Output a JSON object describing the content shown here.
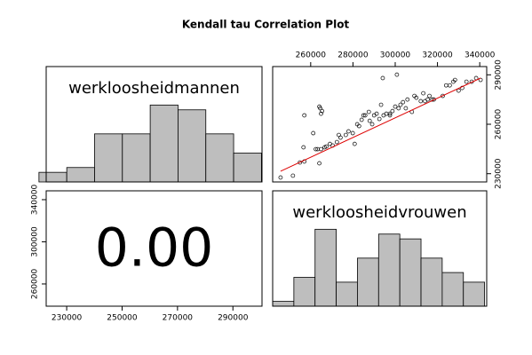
{
  "title": "Kendall tau Correlation Plot",
  "chart_data": [
    {
      "type": "histogram",
      "label": "werkloosheidmannen",
      "color": "#bebebe",
      "bins": [
        220000,
        230000,
        240000,
        250000,
        260000,
        270000,
        280000,
        290000,
        300000
      ],
      "counts": [
        2,
        3,
        10,
        10,
        16,
        15,
        10,
        6
      ],
      "xlim": [
        222600,
        300200
      ],
      "ylim": [
        0,
        24
      ]
    },
    {
      "type": "scatter",
      "line_color": "#dd0000",
      "x": [
        245750,
        251600,
        254900,
        257000,
        256600,
        257000,
        261200,
        262400,
        263300,
        264100,
        264100,
        264500,
        264900,
        265400,
        264900,
        266600,
        267400,
        269100,
        270400,
        272400,
        273300,
        274100,
        276600,
        277900,
        279900,
        280800,
        282000,
        282900,
        284100,
        285000,
        285800,
        287500,
        287900,
        289100,
        290000,
        291200,
        292500,
        293300,
        294100,
        294500,
        295800,
        297500,
        297500,
        298700,
        300000,
        300800,
        301600,
        302500,
        303700,
        305000,
        305800,
        307900,
        309100,
        310000,
        312100,
        313300,
        314100,
        315400,
        316200,
        317500,
        318300,
        322500,
        324100,
        325800,
        327500,
        328300,
        330000,
        331700,
        333700,
        336200,
        338300,
        340400
      ],
      "y": [
        227700,
        228800,
        236800,
        237400,
        246000,
        265400,
        254600,
        244900,
        244900,
        236300,
        270700,
        269700,
        266400,
        268000,
        244900,
        246000,
        246500,
        248100,
        247100,
        249200,
        253500,
        251900,
        253500,
        255700,
        254600,
        248100,
        260000,
        258900,
        262700,
        265400,
        265400,
        267500,
        262100,
        260000,
        265400,
        266400,
        263200,
        271800,
        288000,
        265400,
        266400,
        265400,
        266400,
        268000,
        270700,
        290100,
        269700,
        271800,
        273400,
        269700,
        275000,
        267500,
        277200,
        276100,
        274000,
        278800,
        274000,
        275000,
        277200,
        275000,
        275000,
        277200,
        283600,
        283600,
        285800,
        286900,
        280400,
        282000,
        285800,
        285800,
        288000,
        286900
      ],
      "fit_line": {
        "x": [
          245750,
          340400
        ],
        "y": [
          231500,
          288000
        ]
      },
      "xlim": [
        242000,
        343300
      ],
      "ylim": [
        225000,
        295000
      ],
      "xticks": [
        260000,
        280000,
        300000,
        320000,
        340000
      ],
      "yticks": [
        230000,
        260000,
        290000
      ]
    },
    {
      "type": "text",
      "values": [
        0
      ],
      "value_labels": [
        "0.00"
      ],
      "xlim": [
        222600,
        300500
      ],
      "ylim": [
        238900,
        348400
      ],
      "xticks": [
        230000,
        250000,
        270000,
        290000
      ],
      "yticks": [
        260000,
        300000,
        340000
      ]
    },
    {
      "type": "histogram",
      "label": "werkloosheidvrouwen",
      "color": "#bebebe",
      "bins": [
        240000,
        250000,
        260000,
        270000,
        280000,
        290000,
        300000,
        310000,
        320000,
        330000,
        340000
      ],
      "counts": [
        1,
        6,
        16,
        5,
        10,
        15,
        14,
        10,
        7,
        5
      ],
      "xlim": [
        240000,
        341000
      ],
      "ylim": [
        0,
        24
      ]
    }
  ]
}
